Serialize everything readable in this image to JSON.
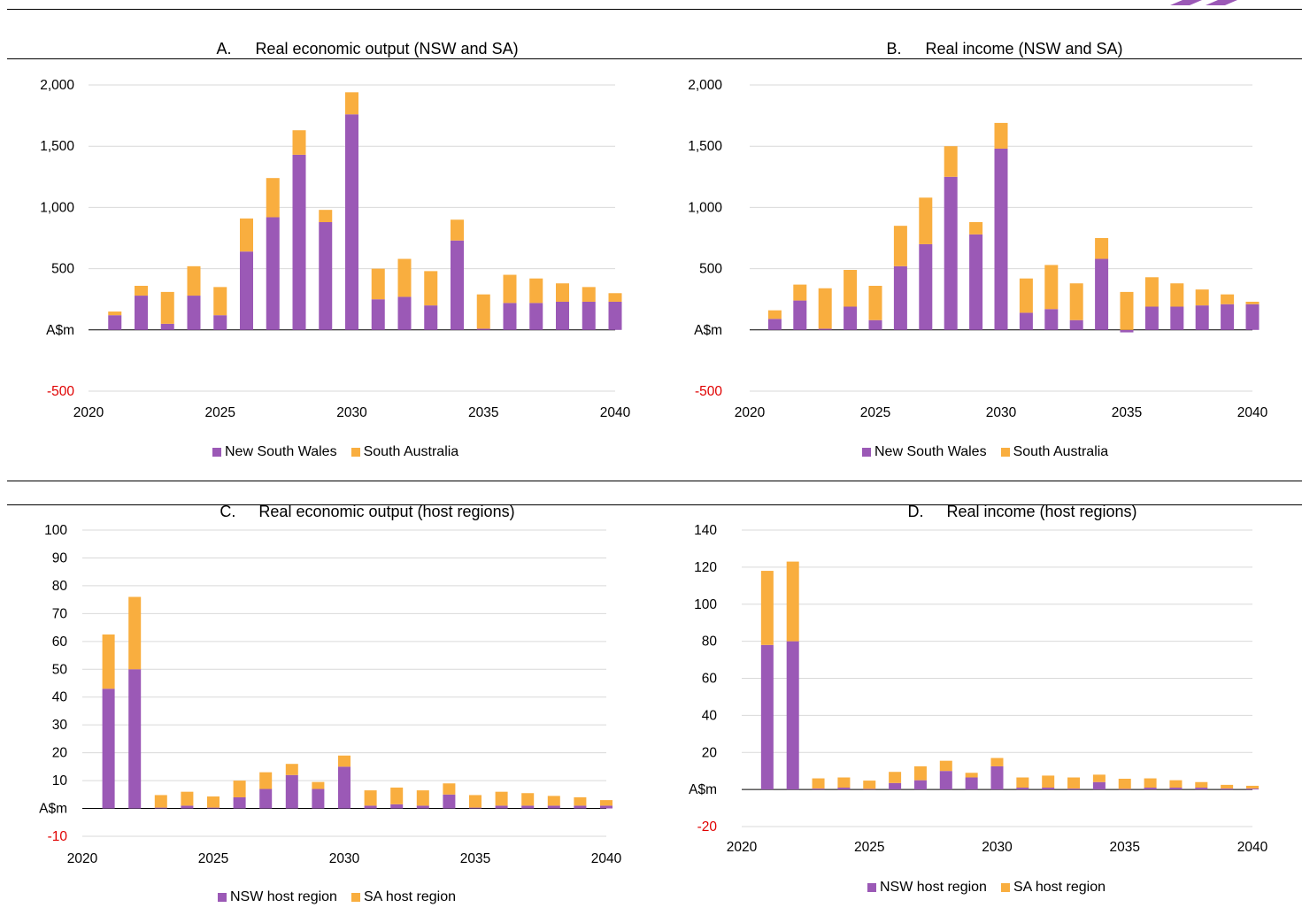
{
  "colors": {
    "series1": "#9b59b6",
    "series2": "#f9ae3f",
    "negative_tick": "#e00000",
    "grid": "#d9d9d9"
  },
  "panels": [
    {
      "letter": "A.",
      "title": "Real economic output (NSW and SA)"
    },
    {
      "letter": "B.",
      "title": "Real income (NSW and SA)"
    },
    {
      "letter": "C.",
      "title": "Real economic output (host regions)"
    },
    {
      "letter": "D.",
      "title": "Real income (host regions)"
    }
  ],
  "legends": {
    "A": [
      "New South Wales",
      "South Australia"
    ],
    "B": [
      "New South Wales",
      "South Australia"
    ],
    "C": [
      "NSW host region",
      "SA host region"
    ],
    "D": [
      "NSW host region",
      "SA host region"
    ]
  },
  "chart_data": [
    {
      "type": "bar",
      "stacked": true,
      "title": "Real economic output (NSW and SA)",
      "x": [
        2021,
        2022,
        2023,
        2024,
        2025,
        2026,
        2027,
        2028,
        2029,
        2030,
        2031,
        2032,
        2033,
        2034,
        2035,
        2036,
        2037,
        2038,
        2039,
        2040
      ],
      "series": [
        {
          "name": "New South Wales",
          "values": [
            120,
            280,
            50,
            280,
            120,
            640,
            920,
            1430,
            880,
            1760,
            250,
            270,
            200,
            730,
            10,
            220,
            220,
            230,
            230,
            230
          ]
        },
        {
          "name": "South Australia",
          "values": [
            30,
            80,
            260,
            240,
            230,
            270,
            320,
            200,
            100,
            180,
            250,
            310,
            280,
            170,
            280,
            230,
            200,
            150,
            120,
            70
          ]
        }
      ],
      "ylim": [
        -500,
        2000
      ],
      "yticks": [
        "-500",
        "A$m",
        "500",
        "1,000",
        "1,500",
        "2,000"
      ],
      "xticks": [
        "2020",
        "2025",
        "2030",
        "2035",
        "2040"
      ],
      "legend": "bottom"
    },
    {
      "type": "bar",
      "stacked": true,
      "title": "Real income (NSW and SA)",
      "x": [
        2021,
        2022,
        2023,
        2024,
        2025,
        2026,
        2027,
        2028,
        2029,
        2030,
        2031,
        2032,
        2033,
        2034,
        2035,
        2036,
        2037,
        2038,
        2039,
        2040
      ],
      "series": [
        {
          "name": "New South Wales",
          "values": [
            90,
            240,
            10,
            190,
            80,
            520,
            700,
            1250,
            780,
            1480,
            140,
            170,
            80,
            580,
            -20,
            190,
            190,
            200,
            210,
            210
          ]
        },
        {
          "name": "South Australia",
          "values": [
            70,
            130,
            330,
            300,
            280,
            330,
            380,
            250,
            100,
            210,
            280,
            360,
            300,
            170,
            310,
            240,
            190,
            130,
            80,
            20
          ]
        }
      ],
      "ylim": [
        -500,
        2000
      ],
      "yticks": [
        "-500",
        "A$m",
        "500",
        "1,000",
        "1,500",
        "2,000"
      ],
      "xticks": [
        "2020",
        "2025",
        "2030",
        "2035",
        "2040"
      ],
      "legend": "bottom"
    },
    {
      "type": "bar",
      "stacked": true,
      "title": "Real economic output (host regions)",
      "x": [
        2021,
        2022,
        2023,
        2024,
        2025,
        2026,
        2027,
        2028,
        2029,
        2030,
        2031,
        2032,
        2033,
        2034,
        2035,
        2036,
        2037,
        2038,
        2039,
        2040
      ],
      "series": [
        {
          "name": "NSW host region",
          "values": [
            43,
            50,
            0.3,
            1,
            0.3,
            4,
            7,
            12,
            7,
            15,
            1,
            1.5,
            1,
            5,
            0.3,
            1,
            1,
            1,
            1,
            1
          ]
        },
        {
          "name": "SA host region",
          "values": [
            19.5,
            26,
            4.5,
            5,
            4,
            6,
            6,
            4,
            2.5,
            4,
            5.5,
            6,
            5.5,
            4,
            4.5,
            5,
            4.5,
            3.5,
            3,
            2
          ]
        }
      ],
      "ylim": [
        -10,
        100
      ],
      "yticks": [
        "-10",
        "A$m",
        "10",
        "20",
        "30",
        "40",
        "50",
        "60",
        "70",
        "80",
        "90",
        "100"
      ],
      "xticks": [
        "2020",
        "2025",
        "2030",
        "2035",
        "2040"
      ],
      "legend": "bottom"
    },
    {
      "type": "bar",
      "stacked": true,
      "title": "Real income (host regions)",
      "x": [
        2021,
        2022,
        2023,
        2024,
        2025,
        2026,
        2027,
        2028,
        2029,
        2030,
        2031,
        2032,
        2033,
        2034,
        2035,
        2036,
        2037,
        2038,
        2039,
        2040
      ],
      "series": [
        {
          "name": "NSW host region",
          "values": [
            78,
            80,
            0.5,
            1,
            0.3,
            3.5,
            5,
            10,
            6.5,
            12.5,
            1,
            1,
            0.5,
            4,
            0.3,
            1,
            1,
            1,
            0.5,
            0.5
          ]
        },
        {
          "name": "SA host region",
          "values": [
            40,
            43,
            5.5,
            5.5,
            4.5,
            6,
            7.5,
            5.5,
            2.5,
            4.5,
            5.5,
            6.5,
            6,
            4,
            5.5,
            5,
            4,
            3,
            2,
            1.5
          ]
        }
      ],
      "ylim": [
        -20,
        140
      ],
      "yticks": [
        "-20",
        "A$m",
        "20",
        "40",
        "60",
        "80",
        "100",
        "120",
        "140"
      ],
      "xticks": [
        "2020",
        "2025",
        "2030",
        "2035",
        "2040"
      ],
      "legend": "bottom"
    }
  ]
}
